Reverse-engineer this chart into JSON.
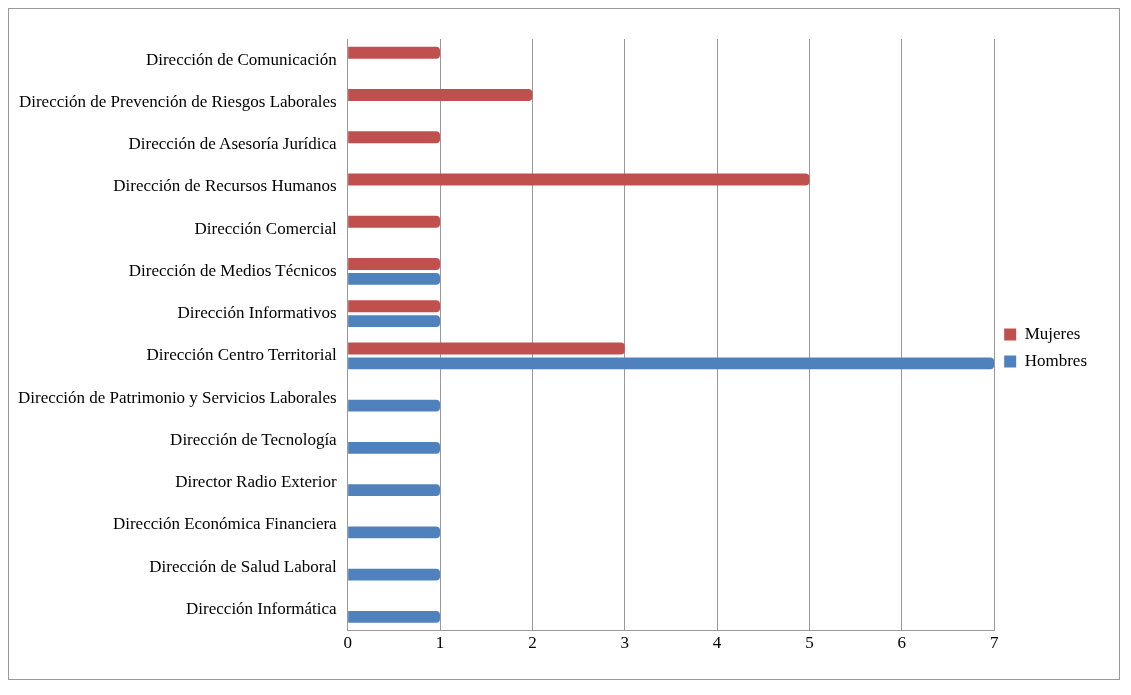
{
  "chart_data": {
    "type": "bar",
    "orientation": "horizontal",
    "categories": [
      "Dirección de Comunicación",
      "Dirección de Prevención de Riesgos Laborales",
      "Dirección de Asesoría Jurídica",
      "Dirección de Recursos Humanos",
      "Dirección Comercial",
      "Dirección de Medios Técnicos",
      "Dirección Informativos",
      "Dirección Centro Territorial",
      "Dirección de Patrimonio y Servicios Laborales",
      "Dirección de Tecnología",
      "Director Radio Exterior",
      "Dirección Económica Financiera",
      "Dirección de Salud Laboral",
      "Dirección Informática"
    ],
    "series": [
      {
        "name": "Mujeres",
        "color": "#c0504d",
        "values": [
          1,
          2,
          1,
          5,
          1,
          1,
          1,
          3,
          null,
          null,
          null,
          null,
          null,
          null
        ]
      },
      {
        "name": "Hombres",
        "color": "#4f81bd",
        "values": [
          null,
          null,
          null,
          null,
          null,
          1,
          1,
          7,
          1,
          1,
          1,
          1,
          1,
          1
        ]
      }
    ],
    "xlim": [
      0,
      7
    ],
    "xticks": [
      0,
      1,
      2,
      3,
      4,
      5,
      6,
      7
    ],
    "grid": "x",
    "legend": "right"
  }
}
